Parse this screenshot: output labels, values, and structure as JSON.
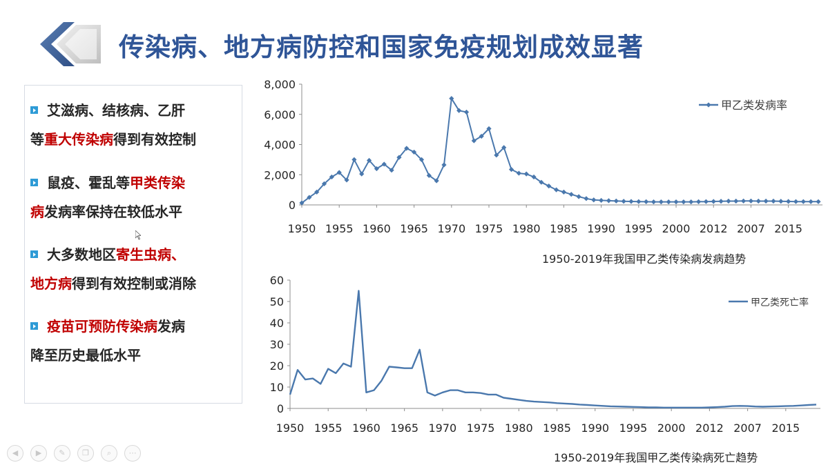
{
  "title": "传染病、地方病防控和国家免疫规划成效显著",
  "bullets": [
    {
      "lines": [
        [
          {
            "text": "艾滋病、结核病、乙肝",
            "red": false
          }
        ],
        [
          {
            "text": "等",
            "red": false
          },
          {
            "text": "重大传染病",
            "red": true
          },
          {
            "text": "得到有效控制",
            "red": false
          }
        ]
      ]
    },
    {
      "lines": [
        [
          {
            "text": "鼠疫、霍乱等",
            "red": false
          },
          {
            "text": "甲类传染",
            "red": true
          }
        ],
        [
          {
            "text": "病",
            "red": true
          },
          {
            "text": "发病率保持在较低水平",
            "red": false
          }
        ]
      ]
    },
    {
      "lines": [
        [
          {
            "text": "大多数地区",
            "red": false
          },
          {
            "text": "寄生虫病、",
            "red": true
          }
        ],
        [
          {
            "text": "地方病",
            "red": true
          },
          {
            "text": "得到有效控制或消除",
            "red": false
          }
        ]
      ]
    },
    {
      "lines": [
        [
          {
            "text": "疫苗可预防传染病",
            "red": true
          },
          {
            "text": "发病",
            "red": false
          }
        ],
        [
          {
            "text": "降至历史最低水平",
            "red": false
          }
        ]
      ]
    }
  ],
  "colors": {
    "title": "#2f5597",
    "accent_red": "#c00000",
    "series": "#4a78ad",
    "bullet": "#2e9bd6"
  },
  "toolbar_icons": [
    "back-icon",
    "forward-icon",
    "pen-icon",
    "copy-icon",
    "zoom-icon",
    "more-icon"
  ],
  "chart_data": [
    {
      "type": "line",
      "title": "1950-2019年我国甲乙类传染病发病趋势",
      "legend": "甲乙类发病率",
      "legend_position": "top-right",
      "markers": true,
      "ylim": [
        0,
        8000
      ],
      "yticks": [
        "0",
        "2,000",
        "4,000",
        "6,000",
        "8,000"
      ],
      "x_labels": [
        "1950",
        "1955",
        "1960",
        "1965",
        "1970",
        "1975",
        "1980",
        "1985",
        "1990",
        "1995",
        "2000",
        "2012",
        "2007",
        "2015"
      ],
      "values": [
        130,
        500,
        850,
        1400,
        1850,
        2150,
        1650,
        3000,
        2050,
        2950,
        2400,
        2700,
        2300,
        3150,
        3750,
        3500,
        3000,
        1950,
        1600,
        2650,
        7050,
        6250,
        6150,
        4250,
        4550,
        5050,
        3300,
        3800,
        2350,
        2100,
        2050,
        1850,
        1500,
        1250,
        1000,
        850,
        700,
        550,
        420,
        330,
        300,
        280,
        260,
        240,
        230,
        220,
        210,
        200,
        200,
        200,
        200,
        200,
        200,
        210,
        220,
        230,
        240,
        250,
        250,
        260,
        260,
        250,
        250,
        250,
        240,
        230,
        220,
        220,
        215,
        215
      ]
    },
    {
      "type": "line",
      "title": "1950-2019年我国甲乙类传染病死亡趋势",
      "legend": "甲乙类死亡率",
      "legend_position": "top-right",
      "markers": false,
      "ylim": [
        0,
        60
      ],
      "yticks": [
        "0",
        "10",
        "20",
        "30",
        "40",
        "50",
        "60"
      ],
      "x_labels": [
        "1950",
        "1955",
        "1960",
        "1965",
        "1970",
        "1975",
        "1980",
        "1985",
        "1990",
        "1995",
        "2000",
        "2012",
        "2007",
        "2015"
      ],
      "values": [
        6.5,
        18,
        13.5,
        14,
        11.5,
        18.5,
        16.5,
        21,
        19.5,
        55,
        7.5,
        8.5,
        13,
        19.5,
        19.2,
        18.8,
        18.8,
        27.5,
        7.5,
        6,
        7.5,
        8.5,
        8.5,
        7.5,
        7.5,
        7.2,
        6.5,
        6.5,
        5,
        4.5,
        4,
        3.5,
        3.2,
        3,
        2.8,
        2.5,
        2.3,
        2.1,
        1.8,
        1.6,
        1.4,
        1.2,
        1.0,
        0.9,
        0.8,
        0.7,
        0.6,
        0.5,
        0.5,
        0.4,
        0.4,
        0.4,
        0.4,
        0.4,
        0.4,
        0.5,
        0.6,
        0.8,
        1.1,
        1.2,
        1.1,
        0.9,
        0.8,
        0.9,
        1.0,
        1.1,
        1.2,
        1.4,
        1.6,
        1.8
      ]
    }
  ]
}
